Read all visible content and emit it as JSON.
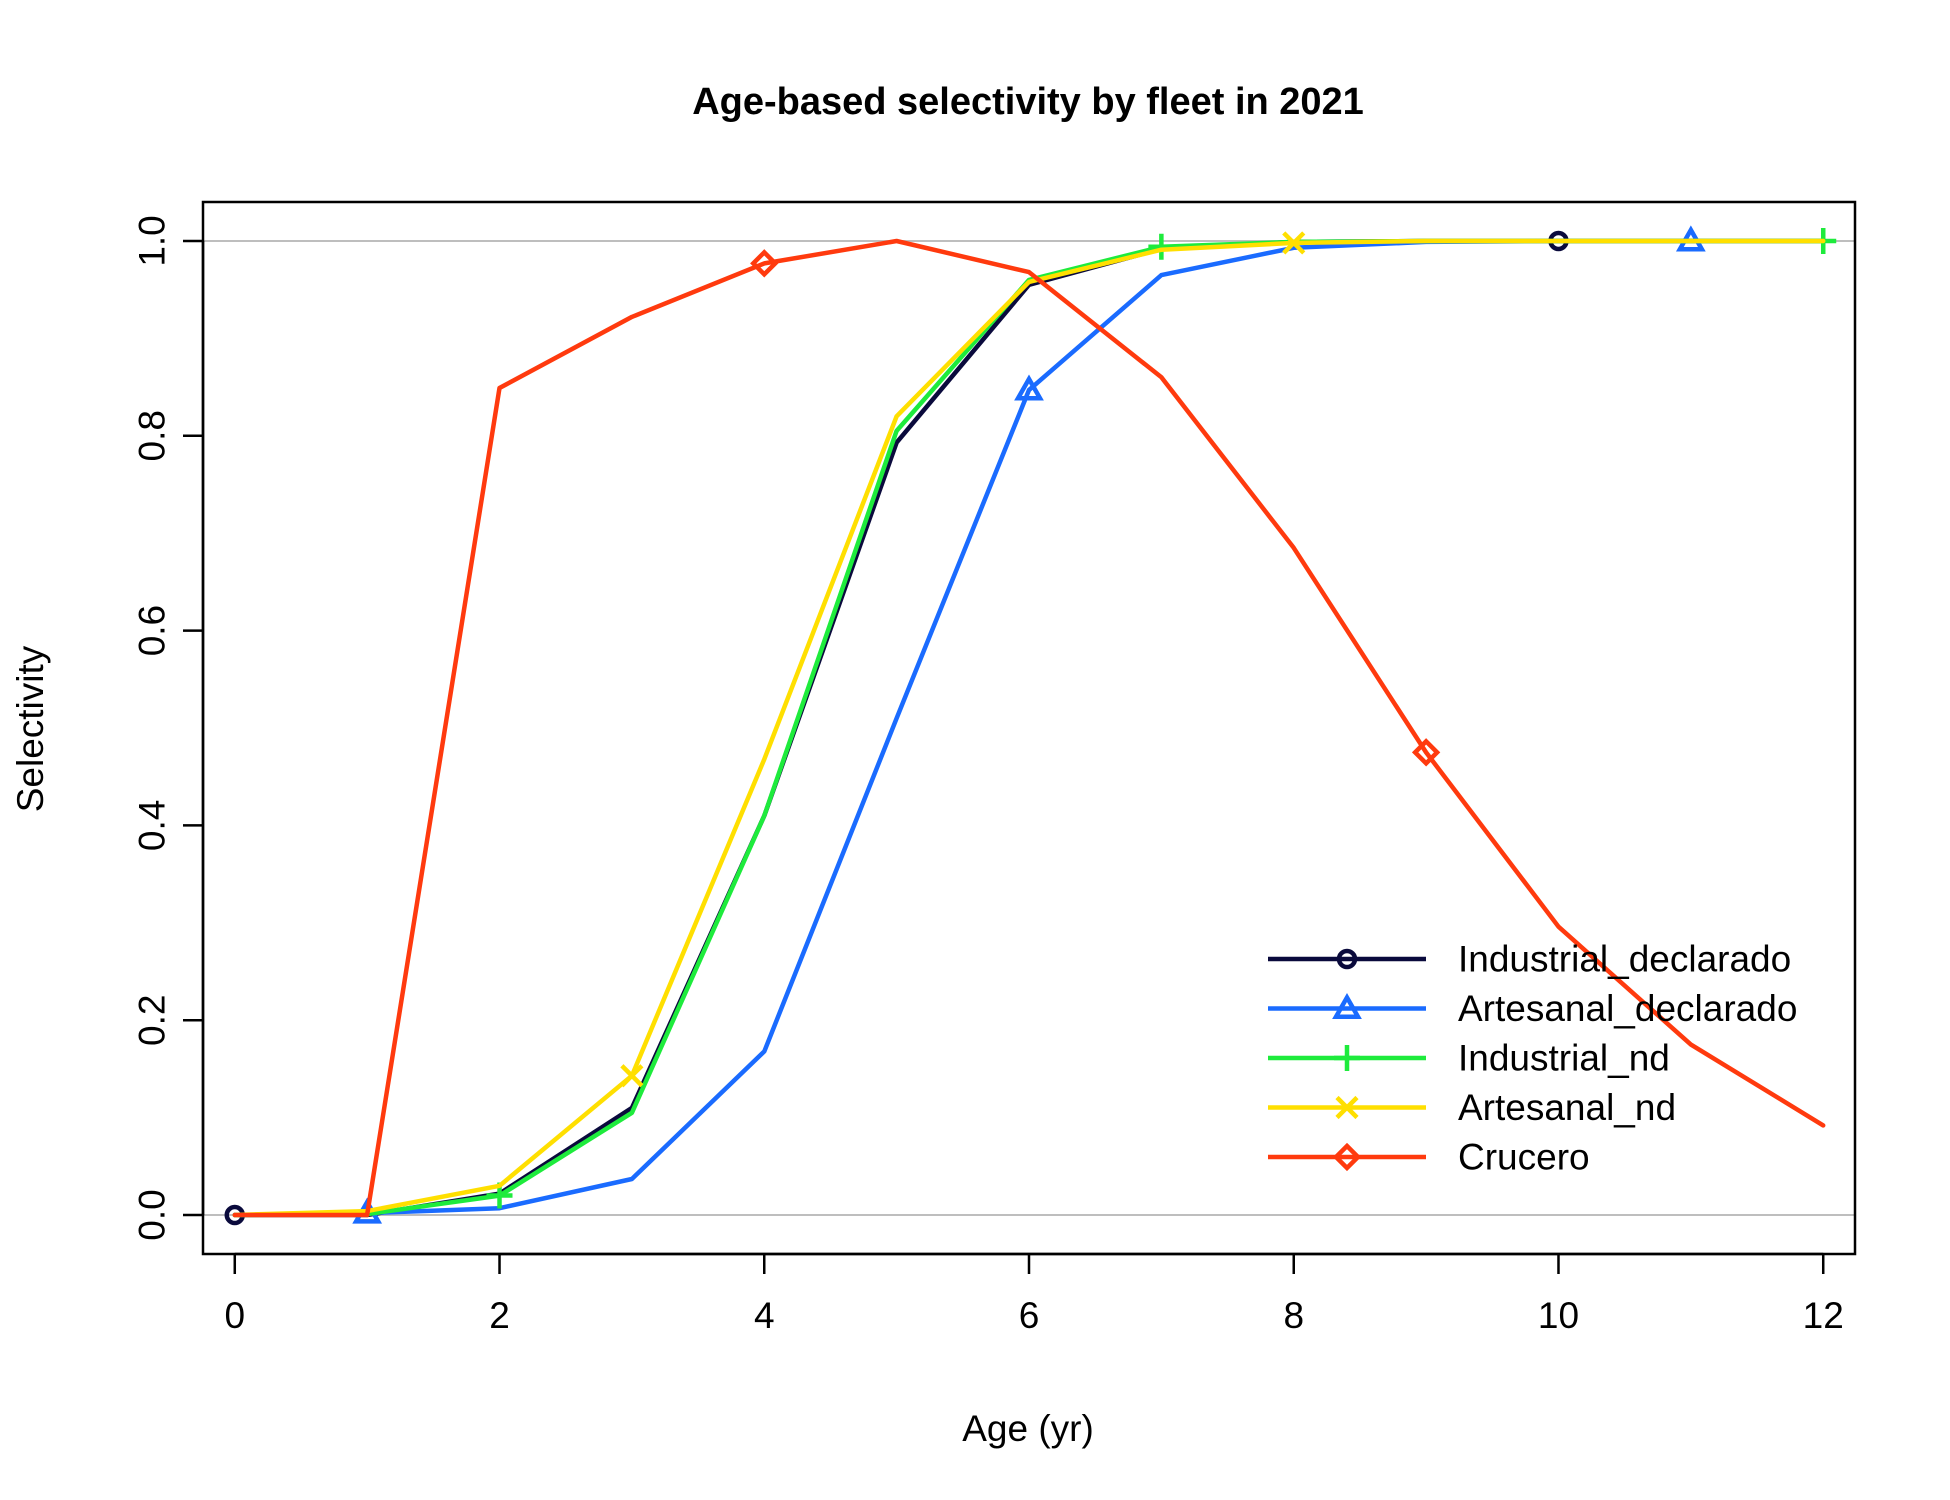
{
  "chart_data": {
    "type": "line",
    "title": "Age-based selectivity by fleet in 2021",
    "xlabel": "Age (yr)",
    "ylabel": "Selectivity",
    "xlim": [
      -0.24,
      12.24
    ],
    "ylim": [
      -0.04,
      1.04
    ],
    "xticks": [
      0,
      2,
      4,
      6,
      8,
      10,
      12
    ],
    "yticks": [
      0.0,
      0.2,
      0.4,
      0.6,
      0.8,
      1.0
    ],
    "xtick_labels": [
      "0",
      "2",
      "4",
      "6",
      "8",
      "10",
      "12"
    ],
    "ytick_labels": [
      "0.0",
      "0.2",
      "0.4",
      "0.6",
      "0.8",
      "1.0"
    ],
    "hlines": [
      0,
      1
    ],
    "hline_color": "#bebebe",
    "legend_position": "bottom-right",
    "x": [
      0,
      1,
      2,
      3,
      4,
      5,
      6,
      7,
      8,
      9,
      10,
      11,
      12
    ],
    "series": [
      {
        "name": "Industrial_declarado",
        "color": "#0a0a3c",
        "marker": "circle",
        "marker_x": [
          0,
          10
        ],
        "values": [
          0.0,
          0.0,
          0.022,
          0.11,
          0.41,
          0.793,
          0.955,
          0.992,
          0.999,
          1.0,
          1.0,
          1.0,
          1.0
        ]
      },
      {
        "name": "Artesanal_declarado",
        "color": "#1a6bff",
        "marker": "triangle",
        "marker_x": [
          1,
          6,
          11
        ],
        "values": [
          0.0,
          0.002,
          0.007,
          0.037,
          0.168,
          0.51,
          0.847,
          0.965,
          0.993,
          0.999,
          1.0,
          1.0,
          1.0
        ]
      },
      {
        "name": "Industrial_nd",
        "color": "#1eeb3c",
        "marker": "plus",
        "marker_x": [
          2,
          7,
          12
        ],
        "values": [
          0.0,
          0.001,
          0.02,
          0.105,
          0.41,
          0.805,
          0.96,
          0.994,
          0.999,
          1.0,
          1.0,
          1.0,
          1.0
        ]
      },
      {
        "name": "Artesanal_nd",
        "color": "#ffdf00",
        "marker": "x",
        "marker_x": [
          3,
          8
        ],
        "values": [
          0.0,
          0.004,
          0.03,
          0.143,
          0.468,
          0.82,
          0.958,
          0.991,
          0.998,
          1.0,
          1.0,
          1.0,
          1.0
        ]
      },
      {
        "name": "Crucero",
        "color": "#ff3a0e",
        "marker": "diamond",
        "marker_x": [
          4,
          9
        ],
        "values": [
          0.0,
          0.0,
          0.849,
          0.922,
          0.977,
          1.0,
          0.968,
          0.86,
          0.685,
          0.475,
          0.296,
          0.175,
          0.092
        ]
      }
    ]
  }
}
